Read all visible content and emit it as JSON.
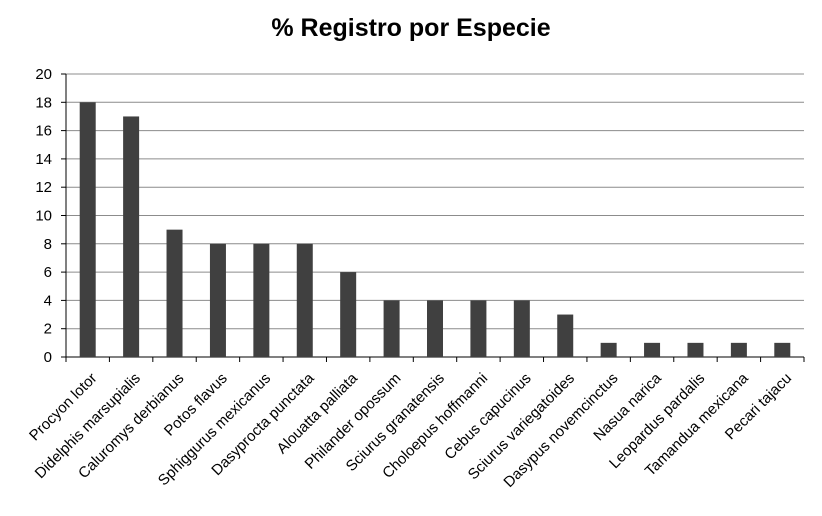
{
  "chart_data": {
    "type": "bar",
    "title": "% Registro por Especie",
    "xlabel": "",
    "ylabel": "",
    "ylim": [
      0,
      20
    ],
    "yticks": [
      0,
      2,
      4,
      6,
      8,
      10,
      12,
      14,
      16,
      18,
      20
    ],
    "grid": true,
    "bar_color": "#404040",
    "categories": [
      "Procyon lotor",
      "Didelphis marsupialis",
      "Caluromys derbianus",
      "Potos flavus",
      "Sphiggurus mexicanus",
      "Dasyprocta punctata",
      "Alouatta palliata",
      "Philander opossum",
      "Sciurus granatensis",
      "Choloepus hoffmanni",
      "Cebus capucinus",
      "Sciurus variegatoides",
      "Dasypus novemcinctus",
      "Nasua narica",
      "Leopardus pardalis",
      "Tamandua mexicana",
      "Pecari tajacu"
    ],
    "values": [
      18,
      17,
      9,
      8,
      8,
      8,
      6,
      4,
      4,
      4,
      4,
      3,
      1,
      1,
      1,
      1,
      1
    ]
  }
}
